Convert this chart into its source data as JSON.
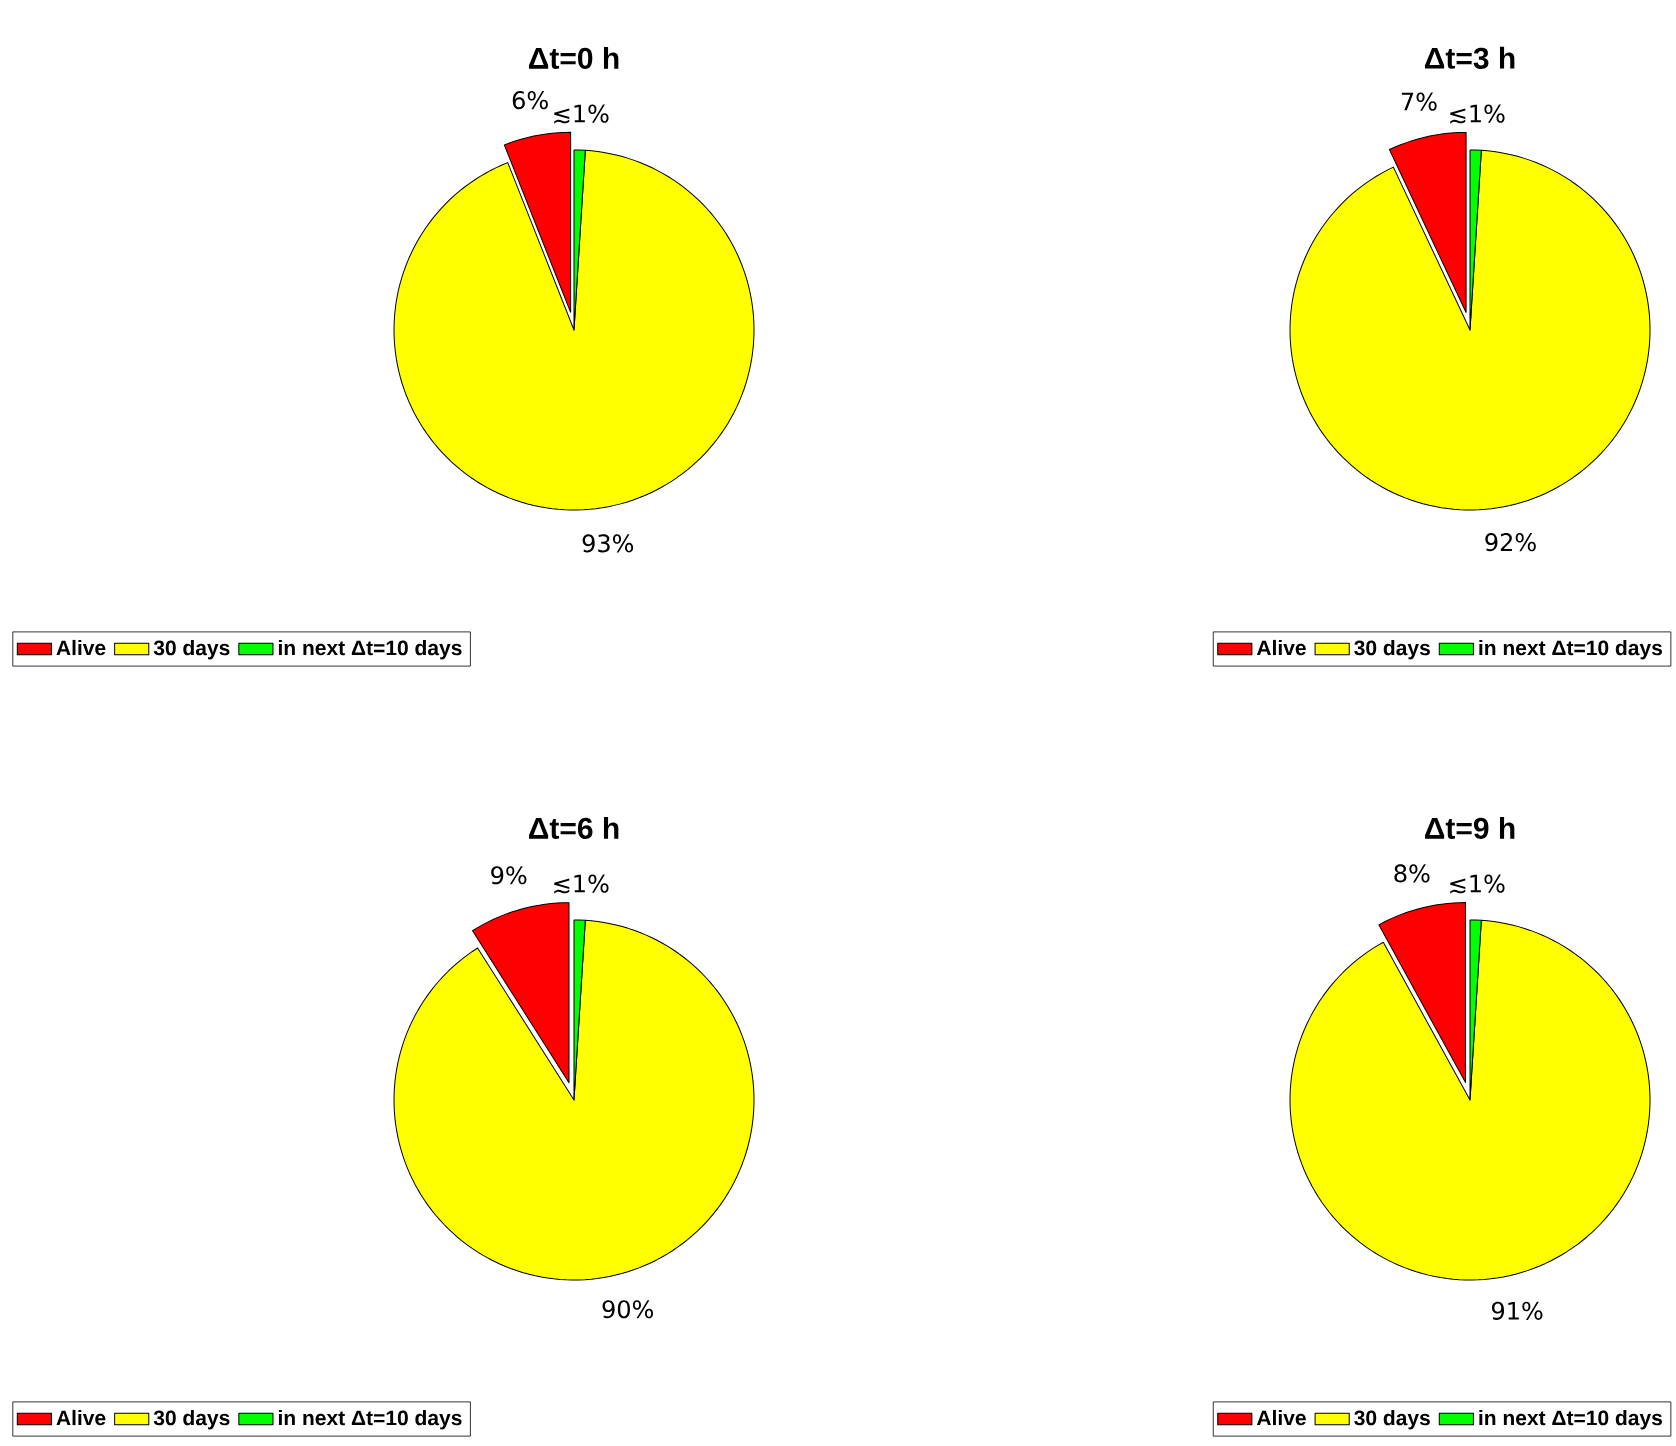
{
  "chart_data": [
    {
      "type": "pie",
      "title": "Δt=0 h",
      "categories": [
        "Alive",
        "30 days",
        "in next Δt=10 days"
      ],
      "values": [
        6,
        93,
        1
      ],
      "colors": [
        "#ff0000",
        "#ffff00",
        "#00ff00"
      ],
      "value_labels": [
        "6%",
        "93%",
        "≲1%"
      ],
      "legend": "bottom"
    },
    {
      "type": "pie",
      "title": "Δt=3 h",
      "categories": [
        "Alive",
        "30 days",
        "in next Δt=10 days"
      ],
      "values": [
        7,
        92,
        1
      ],
      "colors": [
        "#ff0000",
        "#ffff00",
        "#00ff00"
      ],
      "value_labels": [
        "7%",
        "92%",
        "≲1%"
      ],
      "legend": "bottom"
    },
    {
      "type": "pie",
      "title": "Δt=6 h",
      "categories": [
        "Alive",
        "30 days",
        "in next Δt=10 days"
      ],
      "values": [
        9,
        90,
        1
      ],
      "colors": [
        "#ff0000",
        "#ffff00",
        "#00ff00"
      ],
      "value_labels": [
        "9%",
        "90%",
        "≲1%"
      ],
      "legend": "bottom"
    },
    {
      "type": "pie",
      "title": "Δt=9 h",
      "categories": [
        "Alive",
        "30 days",
        "in next Δt=10 days"
      ],
      "values": [
        8,
        91,
        1
      ],
      "colors": [
        "#ff0000",
        "#ffff00",
        "#00ff00"
      ],
      "value_labels": [
        "8%",
        "91%",
        "≲1%"
      ],
      "legend": "bottom"
    }
  ]
}
